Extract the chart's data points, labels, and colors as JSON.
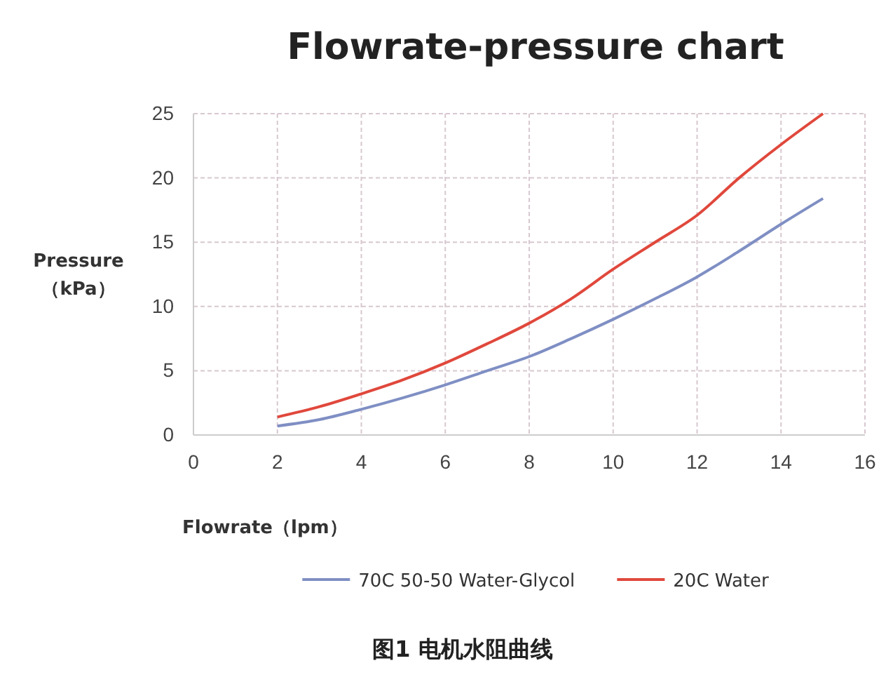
{
  "chart_data": {
    "type": "line",
    "title": "Flowrate-pressure chart",
    "xlabel": "Flowrate（lpm）",
    "ylabel": "Pressure\n（kPa）",
    "x": [
      2,
      3,
      4,
      5,
      6,
      7,
      8,
      9,
      10,
      11,
      12,
      13,
      14,
      15
    ],
    "series": [
      {
        "name": "70C 50-50 Water-Glycol",
        "color": "#7f8fc4",
        "values": [
          0.7,
          1.2,
          2,
          2.9,
          3.9,
          5,
          6.1,
          7.5,
          9,
          10.6,
          12.3,
          14.3,
          16.4,
          18.4
        ]
      },
      {
        "name": "20C Water",
        "color": "#e0483c",
        "values": [
          1.4,
          2.2,
          3.2,
          4.3,
          5.6,
          7.1,
          8.7,
          10.6,
          12.9,
          15,
          17.1,
          20,
          22.6,
          25
        ]
      }
    ],
    "xlim": [
      0,
      16
    ],
    "xticks": [
      0,
      2,
      4,
      6,
      8,
      10,
      12,
      14,
      16
    ],
    "ylim": [
      0,
      25
    ],
    "yticks": [
      0,
      5,
      10,
      15,
      20,
      25
    ],
    "grid": true,
    "legend": "bottom",
    "line_style": "solid",
    "marker": "none",
    "annotations": [
      "图1 电机水阻曲线"
    ]
  }
}
